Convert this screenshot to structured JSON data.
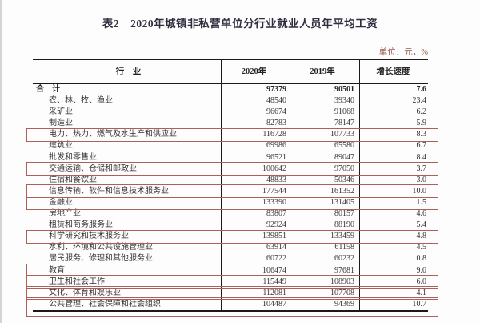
{
  "page": {
    "title": "表2　2020年城镇非私营单位分行业就业人员年平均工资",
    "unit_note": "单位：元，%"
  },
  "colors": {
    "highlight_border": "#ad5f58",
    "unit_text": "#96554b",
    "title_text": "#2e2e3e",
    "table_rule": "#1a1a1a"
  },
  "table": {
    "columns": [
      "行　业",
      "2020年",
      "2019年",
      "增长速度"
    ],
    "rows": [
      {
        "industry": "合　计",
        "y2020": "97379",
        "y2019": "90501",
        "growth": "7.6",
        "bold": true,
        "indent": false,
        "highlight": false
      },
      {
        "industry": "农、林、牧、渔业",
        "y2020": "48540",
        "y2019": "39340",
        "growth": "23.4",
        "highlight": false
      },
      {
        "industry": "采矿业",
        "y2020": "96674",
        "y2019": "91068",
        "growth": "6.2",
        "highlight": false
      },
      {
        "industry": "制造业",
        "y2020": "82783",
        "y2019": "78147",
        "growth": "5.9",
        "highlight": false
      },
      {
        "industry": "电力、热力、燃气及水生产和供应业",
        "y2020": "116728",
        "y2019": "107733",
        "growth": "8.3",
        "highlight": true
      },
      {
        "industry": "建筑业",
        "y2020": "69986",
        "y2019": "65580",
        "growth": "6.7",
        "highlight": false
      },
      {
        "industry": "批发和零售业",
        "y2020": "96521",
        "y2019": "89047",
        "growth": "8.4",
        "highlight": false
      },
      {
        "industry": "交通运输、仓储和邮政业",
        "y2020": "100642",
        "y2019": "97050",
        "growth": "3.7",
        "highlight": true
      },
      {
        "industry": "住宿和餐饮业",
        "y2020": "48833",
        "y2019": "50346",
        "growth": "-3.0",
        "highlight": false
      },
      {
        "industry": "信息传输、软件和信息技术服务业",
        "y2020": "177544",
        "y2019": "161352",
        "growth": "10.0",
        "highlight": true
      },
      {
        "industry": "金融业",
        "y2020": "133390",
        "y2019": "131405",
        "growth": "1.5",
        "highlight": true
      },
      {
        "industry": "房地产业",
        "y2020": "83807",
        "y2019": "80157",
        "growth": "4.6",
        "highlight": false
      },
      {
        "industry": "租赁和商务服务业",
        "y2020": "92924",
        "y2019": "88190",
        "growth": "5.4",
        "highlight": false
      },
      {
        "industry": "科学研究和技术服务业",
        "y2020": "139851",
        "y2019": "133459",
        "growth": "4.8",
        "highlight": true
      },
      {
        "industry": "水利、环境和公共设施管理业",
        "y2020": "63914",
        "y2019": "61158",
        "growth": "4.5",
        "highlight": false
      },
      {
        "industry": "居民服务、修理和其他服务业",
        "y2020": "60722",
        "y2019": "60232",
        "growth": "0.8",
        "highlight": false
      },
      {
        "industry": "教育",
        "y2020": "106474",
        "y2019": "97681",
        "growth": "9.0",
        "highlight": true
      },
      {
        "industry": "卫生和社会工作",
        "y2020": "115449",
        "y2019": "108903",
        "growth": "6.0",
        "highlight": true
      },
      {
        "industry": "文化、体育和娱乐业",
        "y2020": "112081",
        "y2019": "107708",
        "growth": "4.1",
        "highlight": true
      },
      {
        "industry": "公共管理、社会保障和社会组织",
        "y2020": "104487",
        "y2019": "94369",
        "growth": "10.7",
        "highlight": true,
        "tall_box": true
      }
    ]
  }
}
